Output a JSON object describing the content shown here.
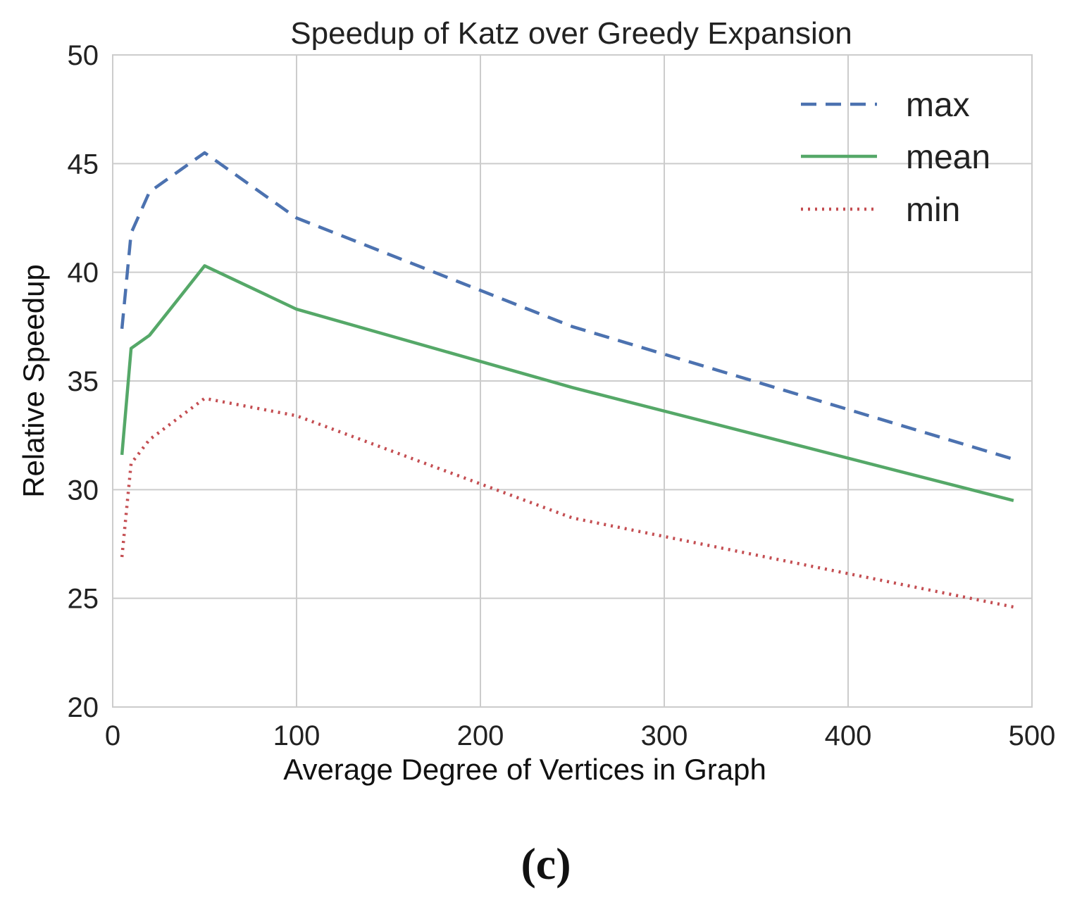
{
  "chart_data": {
    "type": "line",
    "title": "Speedup of Katz over Greedy Expansion",
    "xlabel": "Average Degree of Vertices in Graph",
    "ylabel": "Relative Speedup",
    "xlim": [
      0,
      500
    ],
    "ylim": [
      20,
      50
    ],
    "xticks": [
      0,
      100,
      200,
      300,
      400,
      500
    ],
    "yticks": [
      20,
      25,
      30,
      35,
      40,
      45,
      50
    ],
    "grid": true,
    "legend_position": "top-right",
    "series": [
      {
        "name": "max",
        "style": "dashed",
        "color": "#4c72b0",
        "x": [
          5,
          10,
          20,
          50,
          100,
          250,
          490
        ],
        "y": [
          37.4,
          41.8,
          43.7,
          45.5,
          42.5,
          37.5,
          31.4
        ]
      },
      {
        "name": "mean",
        "style": "solid",
        "color": "#55a868",
        "x": [
          5,
          10,
          20,
          50,
          100,
          250,
          490
        ],
        "y": [
          31.6,
          36.5,
          37.1,
          40.3,
          38.3,
          34.7,
          29.5
        ]
      },
      {
        "name": "min",
        "style": "dotted",
        "color": "#c44e52",
        "x": [
          5,
          10,
          20,
          50,
          100,
          250,
          490
        ],
        "y": [
          26.9,
          31.2,
          32.3,
          34.2,
          33.4,
          28.7,
          24.6
        ]
      }
    ]
  },
  "caption": "(c)"
}
